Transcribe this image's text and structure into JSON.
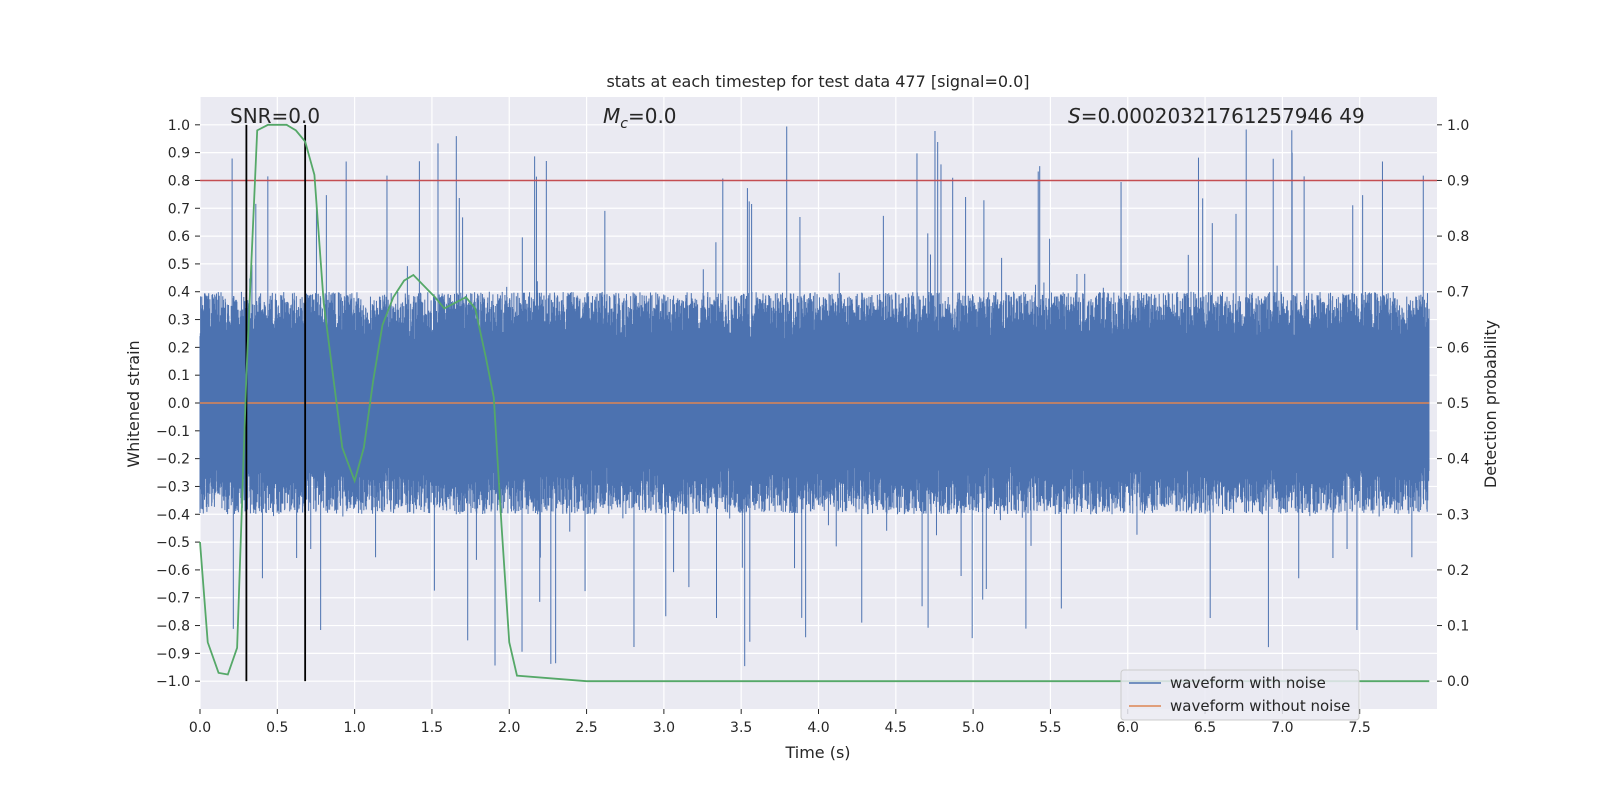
{
  "chart_data": {
    "type": "line",
    "title": "stats at each timestep for test data 477 [signal=0.0]",
    "xlabel": "Time (s)",
    "ylabel": "Whitened strain",
    "y2label": "Detection probability",
    "xlim": [
      0.0,
      8.0
    ],
    "ylim": [
      -1.1,
      1.1
    ],
    "y2lim": [
      -0.05,
      1.05
    ],
    "xticks": [
      "0.0",
      "0.5",
      "1.0",
      "1.5",
      "2.0",
      "2.5",
      "3.0",
      "3.5",
      "4.0",
      "4.5",
      "5.0",
      "5.5",
      "6.0",
      "6.5",
      "7.0",
      "7.5"
    ],
    "yticks": [
      "1.0",
      "0.9",
      "0.8",
      "0.7",
      "0.6",
      "0.5",
      "0.4",
      "0.3",
      "0.2",
      "0.1",
      "0.0",
      "−0.1",
      "−0.2",
      "−0.3",
      "−0.4",
      "−0.5",
      "−0.6",
      "−0.7",
      "−0.8",
      "−0.9",
      "−1.0"
    ],
    "y2ticks": [
      "1.0",
      "0.9",
      "0.8",
      "0.7",
      "0.6",
      "0.5",
      "0.4",
      "0.3",
      "0.2",
      "0.1",
      "0.0"
    ],
    "threshold": 0.9,
    "vlines": [
      0.3,
      0.68
    ],
    "annotations": {
      "snr": "SNR=0.0",
      "mc_symbol": "M",
      "mc_sub": "c",
      "mc_value": "=0.0",
      "s_symbol": "S",
      "s_value": "=0.00020321761257946 49"
    },
    "series": [
      {
        "name": "waveform with noise",
        "color": "#4c72b0",
        "axis": "left",
        "envelope": {
          "typical_max": 0.4,
          "typical_min": -0.4,
          "peak_max": 1.0,
          "peak_min": -0.95
        }
      },
      {
        "name": "waveform without noise",
        "color": "#dd8452",
        "axis": "left",
        "x": [
          0.0,
          7.95
        ],
        "y": [
          0.0,
          0.0
        ]
      },
      {
        "name": "detection probability",
        "color": "#55a868",
        "axis": "right",
        "x": [
          0.0,
          0.05,
          0.12,
          0.18,
          0.24,
          0.3,
          0.37,
          0.44,
          0.5,
          0.56,
          0.62,
          0.68,
          0.74,
          0.8,
          0.86,
          0.92,
          1.0,
          1.06,
          1.12,
          1.18,
          1.25,
          1.32,
          1.38,
          1.45,
          1.52,
          1.58,
          1.65,
          1.72,
          1.78,
          1.85,
          1.9,
          1.95,
          2.0,
          2.05,
          2.5,
          3.0,
          4.0,
          5.0,
          6.0,
          7.0,
          7.95
        ],
        "y": [
          0.25,
          0.07,
          0.015,
          0.012,
          0.06,
          0.55,
          0.99,
          1.0,
          1.0,
          1.0,
          0.99,
          0.97,
          0.91,
          0.68,
          0.55,
          0.42,
          0.36,
          0.42,
          0.54,
          0.64,
          0.69,
          0.72,
          0.73,
          0.71,
          0.69,
          0.67,
          0.68,
          0.69,
          0.67,
          0.58,
          0.51,
          0.28,
          0.07,
          0.01,
          0.0,
          0.0,
          0.0,
          0.0,
          0.0,
          0.0,
          0.0
        ]
      }
    ],
    "legend": {
      "position": "lower-right",
      "entries": [
        "waveform with noise",
        "waveform without noise"
      ]
    }
  }
}
